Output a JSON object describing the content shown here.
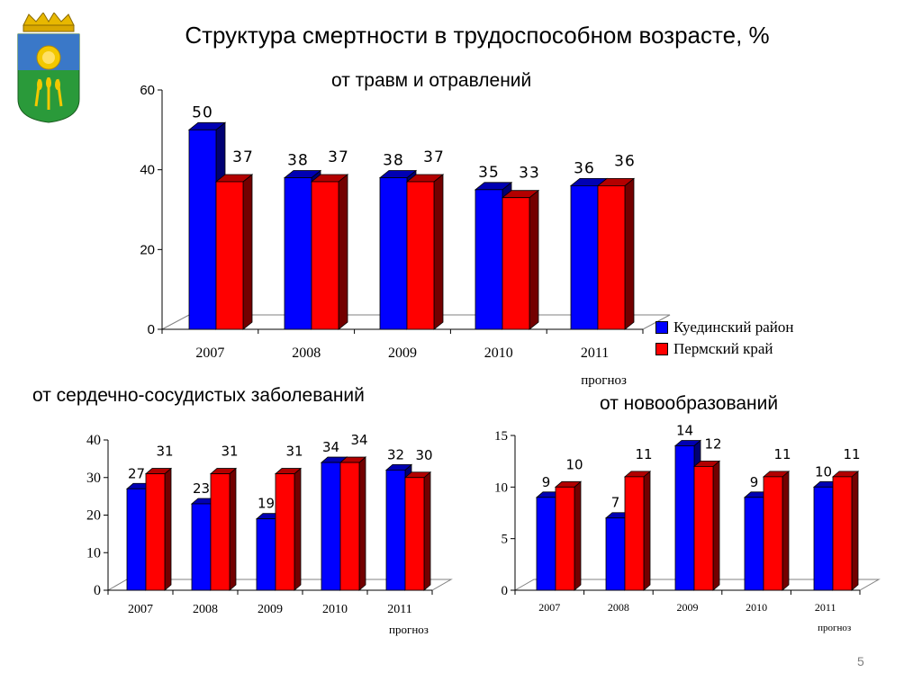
{
  "title": "Структура смертности в трудоспособном возрасте,  %",
  "page_number": "5",
  "colors": {
    "series1": "#0000ff",
    "series2": "#ff0000"
  },
  "legend": [
    "Куединский район",
    "Пермский край"
  ],
  "chart_data": [
    {
      "type": "bar",
      "title": "от травм и отравлений",
      "categories": [
        "2007",
        "2008",
        "2009",
        "2010",
        "2011"
      ],
      "category_note": "прогноз",
      "ylim": [
        0,
        60
      ],
      "yticks": [
        0,
        20,
        40,
        60
      ],
      "series": [
        {
          "name": "Куединский район",
          "values": [
            50,
            38,
            38,
            35,
            36
          ]
        },
        {
          "name": "Пермский край",
          "values": [
            37,
            37,
            37,
            33,
            36
          ]
        }
      ]
    },
    {
      "type": "bar",
      "title": "от сердечно-сосудистых заболеваний",
      "categories": [
        "2007",
        "2008",
        "2009",
        "2010",
        "2011"
      ],
      "category_note": "прогноз",
      "ylim": [
        0,
        40
      ],
      "yticks": [
        0,
        10,
        20,
        30,
        40
      ],
      "series": [
        {
          "name": "Куединский район",
          "values": [
            27,
            23,
            19,
            34,
            32
          ]
        },
        {
          "name": "Пермский край",
          "values": [
            31,
            31,
            31,
            34,
            30
          ]
        }
      ]
    },
    {
      "type": "bar",
      "title": "от новообразований",
      "categories": [
        "2007",
        "2008",
        "2009",
        "2010",
        "2011"
      ],
      "category_note": "прогноз",
      "ylim": [
        0,
        15
      ],
      "yticks": [
        0,
        5,
        10,
        15
      ],
      "series": [
        {
          "name": "Куединский район",
          "values": [
            9,
            7,
            14,
            9,
            10
          ]
        },
        {
          "name": "Пермский край",
          "values": [
            10,
            11,
            12,
            11,
            11
          ]
        }
      ]
    }
  ]
}
